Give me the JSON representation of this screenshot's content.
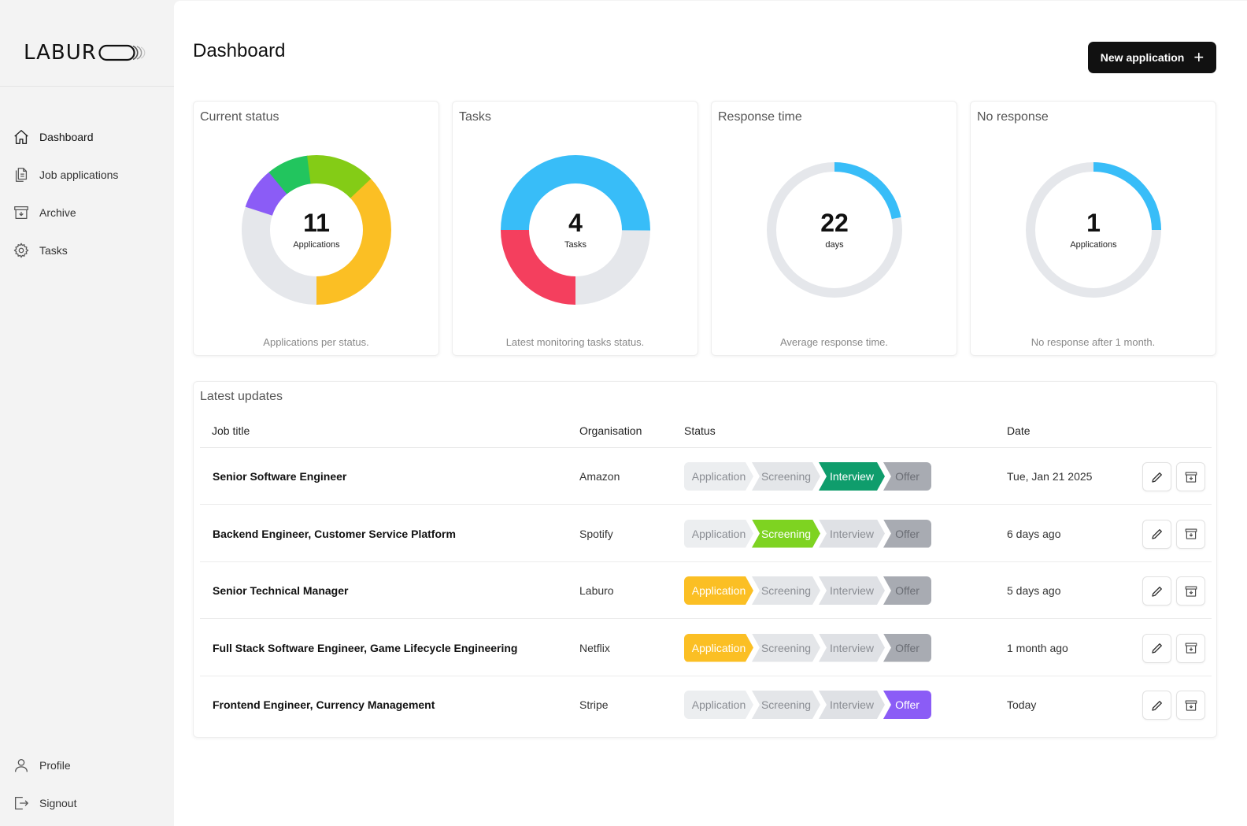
{
  "app": {
    "logo_text": "LABUR"
  },
  "sidebar": {
    "items": [
      {
        "label": "Dashboard",
        "icon": "home-icon"
      },
      {
        "label": "Job applications",
        "icon": "documents-icon"
      },
      {
        "label": "Archive",
        "icon": "archive-icon"
      },
      {
        "label": "Tasks",
        "icon": "gear-icon"
      }
    ],
    "bottom_items": [
      {
        "label": "Profile",
        "icon": "user-icon"
      },
      {
        "label": "Signout",
        "icon": "signout-icon"
      }
    ]
  },
  "header": {
    "title": "Dashboard",
    "new_button": "New application",
    "new_button_icon": "plus-icon"
  },
  "cards": [
    {
      "title": "Current status",
      "value": "11",
      "unit": "Applications",
      "caption": "Applications per status.",
      "segments": [
        {
          "color": "#fbbf24",
          "fraction": 0.25
        },
        {
          "color": "#e5e7eb",
          "fraction": 0.3
        },
        {
          "color": "#8b5cf6",
          "fraction": 0.09
        },
        {
          "color": "#22c55e",
          "fraction": 0.09
        },
        {
          "color": "#84cc16",
          "fraction": 0.15
        },
        {
          "color": "#fbbf24",
          "fraction": 0.12
        }
      ]
    },
    {
      "title": "Tasks",
      "value": "4",
      "unit": "Tasks",
      "caption": "Latest monitoring tasks status.",
      "segments": [
        {
          "color": "#e5e7eb",
          "fraction": 0.25
        },
        {
          "color": "#f43f5e",
          "fraction": 0.25
        },
        {
          "color": "#38bdf8",
          "fraction": 0.5
        }
      ]
    },
    {
      "title": "Response time",
      "value": "22",
      "unit": "days",
      "caption": "Average response time.",
      "progress": 0.22,
      "progress_color": "#38bdf8"
    },
    {
      "title": "No response",
      "value": "1",
      "unit": "Applications",
      "caption": "No response after 1 month.",
      "progress": 0.25,
      "progress_color": "#38bdf8"
    }
  ],
  "latest_updates": {
    "title": "Latest updates",
    "columns": {
      "job_title": "Job title",
      "organisation": "Organisation",
      "status": "Status",
      "date": "Date"
    },
    "stages": [
      "Application",
      "Screening",
      "Interview",
      "Offer"
    ],
    "active_colors": {
      "Application": "#fbbf24",
      "Screening": "#7ed321",
      "Interview": "#0f9d6c",
      "Offer": "#8b5cf6"
    },
    "rows": [
      {
        "title": "Senior Software Engineer",
        "org": "Amazon",
        "status": "Interview",
        "date": "Tue, Jan 21 2025"
      },
      {
        "title": "Backend Engineer, Customer Service Platform",
        "org": "Spotify",
        "status": "Screening",
        "date": "6 days ago"
      },
      {
        "title": "Senior Technical Manager",
        "org": "Laburo",
        "status": "Application",
        "date": "5 days ago"
      },
      {
        "title": "Full Stack Software Engineer, Game Lifecycle Engineering",
        "org": "Netflix",
        "status": "Application",
        "date": "1 month ago"
      },
      {
        "title": "Frontend Engineer, Currency Management",
        "org": "Stripe",
        "status": "Offer",
        "date": "Today"
      }
    ]
  }
}
